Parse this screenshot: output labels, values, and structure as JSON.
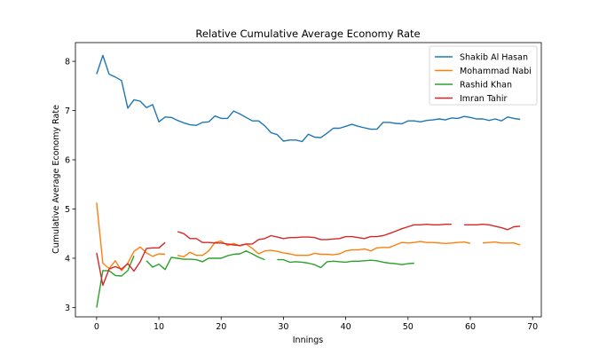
{
  "chart_data": {
    "type": "line",
    "title": "Relative Cumulative Average Economy Rate",
    "xlabel": "Innings",
    "ylabel": "Cumulative Average Economy Rate",
    "xlim": [
      -3.4,
      71.4
    ],
    "ylim": [
      2.81,
      8.38
    ],
    "xticks": [
      0,
      10,
      20,
      30,
      40,
      50,
      60,
      70
    ],
    "yticks": [
      3,
      4,
      5,
      6,
      7,
      8
    ],
    "grid": false,
    "legend_position": "top-right",
    "series": [
      {
        "name": "Shakib Al Hasan",
        "color": "#1f77b4",
        "values": [
          7.74,
          8.12,
          7.74,
          7.68,
          7.61,
          7.05,
          7.22,
          7.19,
          7.06,
          7.12,
          6.77,
          6.87,
          6.86,
          6.8,
          6.75,
          6.71,
          6.7,
          6.76,
          6.77,
          6.89,
          6.84,
          6.84,
          6.99,
          6.93,
          6.86,
          6.79,
          6.79,
          6.69,
          6.55,
          6.51,
          6.38,
          6.4,
          6.4,
          6.37,
          6.52,
          6.46,
          6.45,
          6.54,
          6.64,
          6.64,
          6.68,
          6.72,
          6.68,
          6.65,
          6.62,
          6.62,
          6.76,
          6.76,
          6.74,
          6.73,
          6.79,
          6.79,
          6.77,
          6.8,
          6.81,
          6.83,
          6.81,
          6.85,
          6.84,
          6.88,
          6.86,
          6.83,
          6.83,
          6.8,
          6.83,
          6.79,
          6.87,
          6.84,
          6.82
        ]
      },
      {
        "name": "Mohammad Nabi",
        "color": "#ff7f0e",
        "values": [
          5.13,
          3.9,
          3.79,
          3.95,
          3.75,
          3.9,
          4.14,
          4.23,
          4.11,
          4.04,
          4.09,
          4.08,
          null,
          4.06,
          4.03,
          4.12,
          4.06,
          4.06,
          4.15,
          4.32,
          4.35,
          4.26,
          4.3,
          4.25,
          4.29,
          4.2,
          4.09,
          4.15,
          4.16,
          4.14,
          4.11,
          4.09,
          4.06,
          4.06,
          4.06,
          4.1,
          4.08,
          4.08,
          4.07,
          4.09,
          4.15,
          4.17,
          4.17,
          4.19,
          4.15,
          4.21,
          4.22,
          4.22,
          4.27,
          4.32,
          4.31,
          4.32,
          4.34,
          4.32,
          4.32,
          4.31,
          4.3,
          4.31,
          4.32,
          4.33,
          4.3,
          null,
          4.31,
          4.32,
          4.33,
          4.31,
          4.31,
          4.31,
          4.27
        ]
      },
      {
        "name": "Rashid Khan",
        "color": "#2ca02c",
        "values": [
          3.0,
          3.75,
          3.75,
          3.65,
          3.64,
          3.75,
          4.05,
          null,
          3.95,
          3.82,
          3.88,
          3.77,
          4.02,
          4.0,
          3.98,
          3.98,
          3.97,
          3.93,
          4.0,
          4.0,
          4.0,
          4.05,
          4.08,
          4.09,
          4.15,
          4.09,
          4.02,
          3.97,
          null,
          3.97,
          3.97,
          3.92,
          3.93,
          3.92,
          3.9,
          3.87,
          3.81,
          3.93,
          3.94,
          3.93,
          3.92,
          3.94,
          3.94,
          3.95,
          3.96,
          3.95,
          3.92,
          3.9,
          3.89,
          3.87,
          3.89,
          3.9
        ]
      },
      {
        "name": "Imran Tahir",
        "color": "#d62728",
        "values": [
          4.11,
          3.45,
          3.78,
          3.83,
          3.78,
          3.89,
          3.74,
          3.93,
          4.2,
          4.21,
          4.21,
          4.32,
          null,
          4.54,
          4.5,
          4.4,
          4.4,
          4.32,
          4.32,
          4.31,
          4.31,
          4.29,
          4.27,
          4.26,
          4.29,
          4.29,
          4.38,
          4.4,
          4.46,
          4.43,
          4.4,
          4.42,
          4.42,
          4.43,
          4.43,
          4.42,
          4.38,
          4.38,
          4.39,
          4.4,
          4.44,
          4.44,
          4.42,
          4.4,
          4.44,
          4.44,
          4.46,
          4.5,
          4.55,
          4.6,
          4.64,
          4.68,
          4.68,
          4.69,
          4.68,
          4.68,
          4.69,
          4.69,
          null,
          4.68,
          4.68,
          4.68,
          4.69,
          4.68,
          4.65,
          4.62,
          4.58,
          4.64,
          4.65
        ]
      }
    ]
  }
}
